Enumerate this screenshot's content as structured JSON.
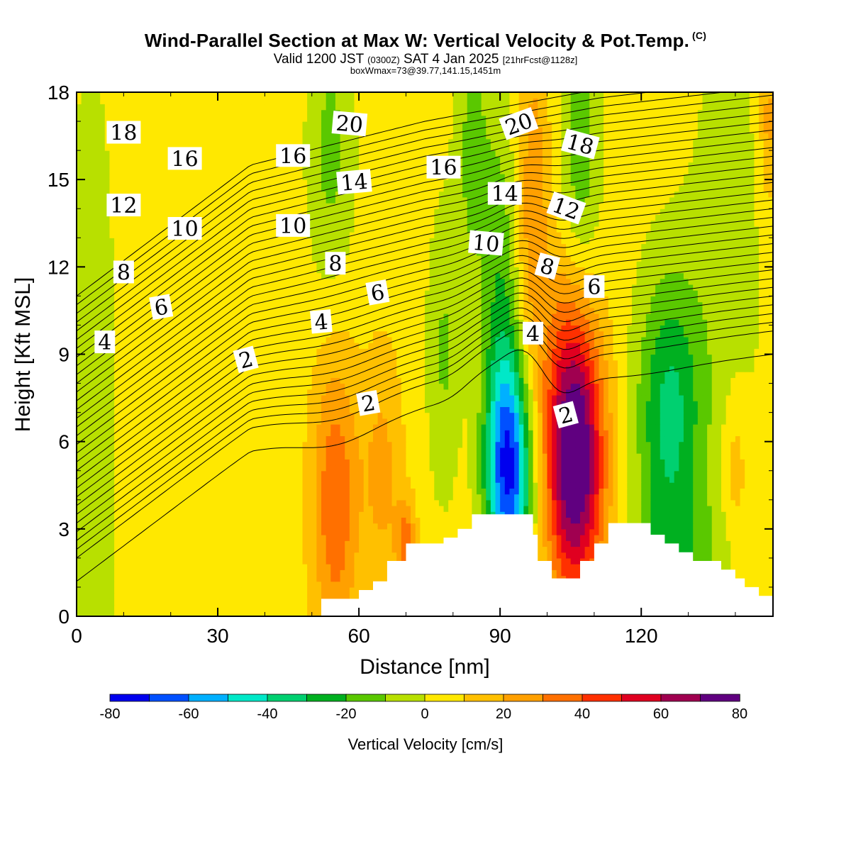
{
  "title": "Wind-Parallel Section at Max W: Vertical Velocity & Pot.Temp.",
  "title_mark": "(C)",
  "subtitle_main": "Valid 1200 JST",
  "subtitle_z": "(0300Z)",
  "subtitle_date": "SAT 4 Jan 2025",
  "subtitle_fcst": "[21hrFcst@1128z]",
  "box_note": "boxWmax=73@39.77,141.15,1451m",
  "colors": {
    "levels": [
      "#0000ee",
      "#0050ff",
      "#00b0ff",
      "#00e8c8",
      "#00d070",
      "#00b020",
      "#5ac800",
      "#b8e000",
      "#ffe800",
      "#ffc000",
      "#ffa000",
      "#ff7000",
      "#ff3000",
      "#e00020",
      "#a00050",
      "#600080"
    ],
    "terrain": "#ffffff",
    "contour": "#000000"
  },
  "chart_data": {
    "type": "heatmap",
    "xlabel": "Distance [nm]",
    "ylabel": "Height [Kft MSL]",
    "xlim": [
      0,
      148
    ],
    "ylim": [
      0,
      18
    ],
    "x_ticks": [
      0,
      30,
      60,
      90,
      120
    ],
    "y_ticks": [
      0,
      3,
      6,
      9,
      12,
      15,
      18
    ],
    "colorbar": {
      "label": "Vertical Velocity [cm/s]",
      "ticks": [
        -80,
        -60,
        -40,
        -20,
        0,
        20,
        40,
        60,
        80
      ],
      "bounds": [
        -80,
        80
      ],
      "step": 10
    },
    "velocity_features": [
      {
        "x": 92,
        "y": 5.0,
        "w": -72,
        "sx": 3.5,
        "sy": 2.8
      },
      {
        "x": 106,
        "y": 5.0,
        "w": 73,
        "sx": 4.5,
        "sy": 3.2
      },
      {
        "x": 126,
        "y": 6.8,
        "w": -38,
        "sx": 5.0,
        "sy": 3.5
      },
      {
        "x": 55,
        "y": 4.0,
        "w": 34,
        "sx": 3.5,
        "sy": 3.5
      },
      {
        "x": 65,
        "y": 5.0,
        "w": 18,
        "sx": 3.0,
        "sy": 3.0
      },
      {
        "x": 70,
        "y": 2.5,
        "w": 30,
        "sx": 1.5,
        "sy": 1.0
      },
      {
        "x": 90,
        "y": 11.0,
        "w": -22,
        "sx": 2.8,
        "sy": 5.0
      },
      {
        "x": 97,
        "y": 14.0,
        "w": 22,
        "sx": 2.5,
        "sy": 4.5
      },
      {
        "x": 105,
        "y": 9.0,
        "w": 22,
        "sx": 4.0,
        "sy": 3.0
      },
      {
        "x": 107,
        "y": 15.5,
        "w": -22,
        "sx": 3.0,
        "sy": 3.5
      },
      {
        "x": 54,
        "y": 16.0,
        "w": -18,
        "sx": 3.5,
        "sy": 3.5
      },
      {
        "x": 78,
        "y": 9.0,
        "w": -16,
        "sx": 2.5,
        "sy": 3.5
      },
      {
        "x": 84,
        "y": 16.0,
        "w": -18,
        "sx": 2.5,
        "sy": 3.5
      },
      {
        "x": 140,
        "y": 5.0,
        "w": 15,
        "sx": 2.0,
        "sy": 2.0
      },
      {
        "x": 3,
        "y": 6.0,
        "w": -12,
        "sx": 4.0,
        "sy": 10.0
      },
      {
        "x": 138,
        "y": 12.0,
        "w": -10,
        "sx": 6.0,
        "sy": 7.0
      },
      {
        "x": 128,
        "y": 2.0,
        "w": -14,
        "sx": 8.0,
        "sy": 1.5
      },
      {
        "x": 147,
        "y": 17.0,
        "w": 20,
        "sx": 1.2,
        "sy": 2.0
      }
    ],
    "terrain": [
      {
        "x": 0,
        "h": 0
      },
      {
        "x": 52,
        "h": 0.6
      },
      {
        "x": 60,
        "h": 0.9
      },
      {
        "x": 63,
        "h": 1.2
      },
      {
        "x": 66,
        "h": 1.9
      },
      {
        "x": 70,
        "h": 2.5
      },
      {
        "x": 75,
        "h": 2.5
      },
      {
        "x": 78,
        "h": 2.7
      },
      {
        "x": 81,
        "h": 3.0
      },
      {
        "x": 84,
        "h": 3.5
      },
      {
        "x": 93,
        "h": 3.5
      },
      {
        "x": 97,
        "h": 2.8
      },
      {
        "x": 98,
        "h": 1.9
      },
      {
        "x": 101,
        "h": 1.3
      },
      {
        "x": 104,
        "h": 1.3
      },
      {
        "x": 107,
        "h": 1.9
      },
      {
        "x": 110,
        "h": 2.5
      },
      {
        "x": 113,
        "h": 3.2
      },
      {
        "x": 119,
        "h": 3.2
      },
      {
        "x": 122,
        "h": 2.8
      },
      {
        "x": 125,
        "h": 2.5
      },
      {
        "x": 128,
        "h": 2.2
      },
      {
        "x": 131,
        "h": 1.9
      },
      {
        "x": 137,
        "h": 1.6
      },
      {
        "x": 140,
        "h": 1.3
      },
      {
        "x": 142,
        "h": 1.0
      },
      {
        "x": 145,
        "h": 0.7
      },
      {
        "x": 148,
        "h": 0.7
      }
    ],
    "theta_lines": {
      "count": 32,
      "base_height": [
        1.2,
        5.7,
        7.2,
        8.3,
        9.0
      ],
      "spacing": 0.3,
      "perturbations": [
        {
          "x": 56,
          "amp": -1.2,
          "sx": 8,
          "ztop": 12
        },
        {
          "x": 86,
          "amp": 1.2,
          "sx": 4,
          "ztop": 14
        },
        {
          "x": 95,
          "amp": 2.6,
          "sx": 5,
          "ztop": 17
        },
        {
          "x": 102,
          "amp": -1.5,
          "sx": 4,
          "ztop": 16
        },
        {
          "x": 120,
          "amp": -0.6,
          "sx": 10,
          "ztop": 12
        }
      ]
    },
    "contour_labels": [
      {
        "text": "18",
        "x": 10,
        "y": 16.6,
        "rot": 0
      },
      {
        "text": "16",
        "x": 23,
        "y": 15.7,
        "rot": 0
      },
      {
        "text": "16",
        "x": 46,
        "y": 15.8,
        "rot": 0
      },
      {
        "text": "20",
        "x": 58,
        "y": 16.9,
        "rot": 5
      },
      {
        "text": "14",
        "x": 59,
        "y": 14.9,
        "rot": -5
      },
      {
        "text": "16",
        "x": 78,
        "y": 15.4,
        "rot": 0
      },
      {
        "text": "20",
        "x": 94,
        "y": 16.9,
        "rot": -20
      },
      {
        "text": "18",
        "x": 107,
        "y": 16.2,
        "rot": 15
      },
      {
        "text": "14",
        "x": 91,
        "y": 14.5,
        "rot": 0
      },
      {
        "text": "12",
        "x": 104,
        "y": 14.0,
        "rot": 20
      },
      {
        "text": "12",
        "x": 10,
        "y": 14.1,
        "rot": 0
      },
      {
        "text": "10",
        "x": 23,
        "y": 13.3,
        "rot": 0
      },
      {
        "text": "10",
        "x": 46,
        "y": 13.4,
        "rot": 0
      },
      {
        "text": "10",
        "x": 87,
        "y": 12.8,
        "rot": 5
      },
      {
        "text": "8",
        "x": 10,
        "y": 11.8,
        "rot": 0
      },
      {
        "text": "8",
        "x": 55,
        "y": 12.1,
        "rot": 0
      },
      {
        "text": "8",
        "x": 100,
        "y": 12.0,
        "rot": 15
      },
      {
        "text": "6",
        "x": 18,
        "y": 10.6,
        "rot": -10
      },
      {
        "text": "6",
        "x": 64,
        "y": 11.1,
        "rot": -10
      },
      {
        "text": "6",
        "x": 110,
        "y": 11.3,
        "rot": 0
      },
      {
        "text": "4",
        "x": 6,
        "y": 9.4,
        "rot": 0
      },
      {
        "text": "4",
        "x": 52,
        "y": 10.1,
        "rot": -5
      },
      {
        "text": "4",
        "x": 97,
        "y": 9.7,
        "rot": 0
      },
      {
        "text": "2",
        "x": 36,
        "y": 8.8,
        "rot": -15
      },
      {
        "text": "2",
        "x": 62,
        "y": 7.3,
        "rot": -10
      },
      {
        "text": "2",
        "x": 104,
        "y": 6.9,
        "rot": -15
      }
    ]
  }
}
